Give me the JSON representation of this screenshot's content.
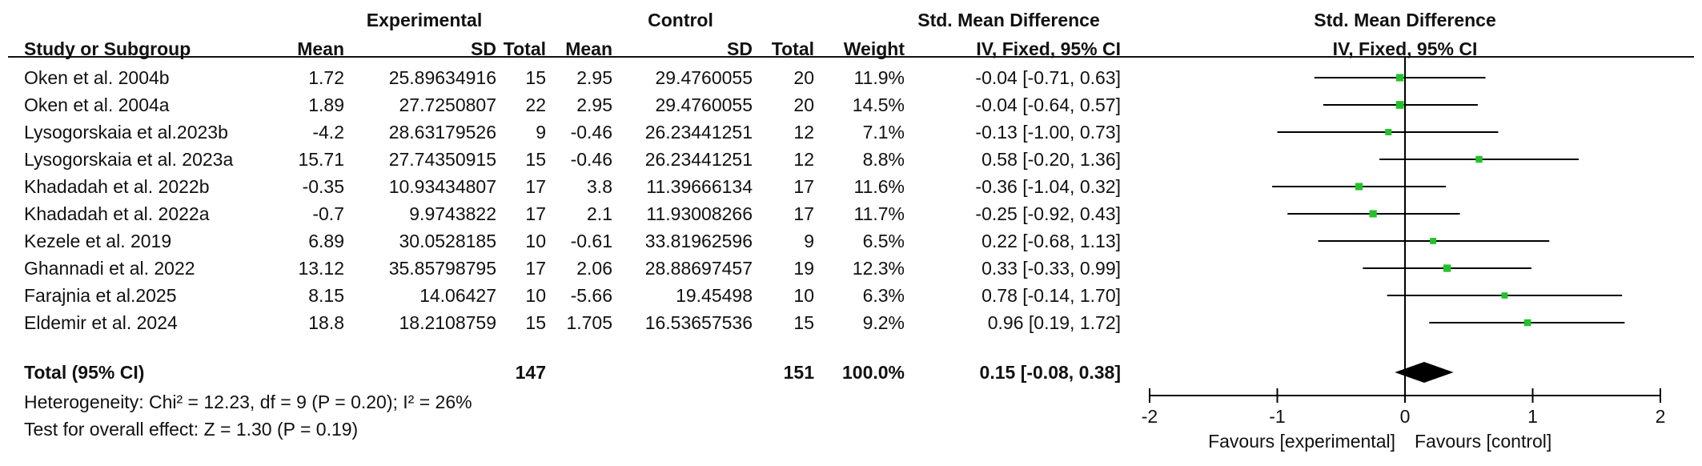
{
  "headers": {
    "experimental": "Experimental",
    "control": "Control",
    "smd_top": "Std. Mean Difference",
    "study": "Study or Subgroup",
    "mean": "Mean",
    "sd": "SD",
    "total": "Total",
    "weight": "Weight",
    "smd_sub": "IV, Fixed, 95% CI",
    "plot_top": "Std. Mean Difference",
    "plot_sub": "IV, Fixed, 95% CI"
  },
  "rows": [
    {
      "study": "Oken et al. 2004b",
      "e_mean": "1.72",
      "e_sd": "25.89634916",
      "e_total": "15",
      "c_mean": "2.95",
      "c_sd": "29.4760055",
      "c_total": "20",
      "weight": "11.9%",
      "ci": "-0.04 [-0.71, 0.63]"
    },
    {
      "study": "Oken et al. 2004a",
      "e_mean": "1.89",
      "e_sd": "27.7250807",
      "e_total": "22",
      "c_mean": "2.95",
      "c_sd": "29.4760055",
      "c_total": "20",
      "weight": "14.5%",
      "ci": "-0.04 [-0.64, 0.57]"
    },
    {
      "study": "Lysogorskaia et al.2023b",
      "e_mean": "-4.2",
      "e_sd": "28.63179526",
      "e_total": "9",
      "c_mean": "-0.46",
      "c_sd": "26.23441251",
      "c_total": "12",
      "weight": "7.1%",
      "ci": "-0.13 [-1.00, 0.73]"
    },
    {
      "study": "Lysogorskaia et al. 2023a",
      "e_mean": "15.71",
      "e_sd": "27.74350915",
      "e_total": "15",
      "c_mean": "-0.46",
      "c_sd": "26.23441251",
      "c_total": "12",
      "weight": "8.8%",
      "ci": "0.58 [-0.20, 1.36]"
    },
    {
      "study": "Khadadah et al. 2022b",
      "e_mean": "-0.35",
      "e_sd": "10.93434807",
      "e_total": "17",
      "c_mean": "3.8",
      "c_sd": "11.39666134",
      "c_total": "17",
      "weight": "11.6%",
      "ci": "-0.36 [-1.04, 0.32]"
    },
    {
      "study": "Khadadah et al. 2022a",
      "e_mean": "-0.7",
      "e_sd": "9.9743822",
      "e_total": "17",
      "c_mean": "2.1",
      "c_sd": "11.93008266",
      "c_total": "17",
      "weight": "11.7%",
      "ci": "-0.25 [-0.92, 0.43]"
    },
    {
      "study": "Kezele et al. 2019",
      "e_mean": "6.89",
      "e_sd": "30.0528185",
      "e_total": "10",
      "c_mean": "-0.61",
      "c_sd": "33.81962596",
      "c_total": "9",
      "weight": "6.5%",
      "ci": "0.22 [-0.68, 1.13]"
    },
    {
      "study": "Ghannadi et al. 2022",
      "e_mean": "13.12",
      "e_sd": "35.85798795",
      "e_total": "17",
      "c_mean": "2.06",
      "c_sd": "28.88697457",
      "c_total": "19",
      "weight": "12.3%",
      "ci": "0.33 [-0.33, 0.99]"
    },
    {
      "study": "Farajnia et al.2025",
      "e_mean": "8.15",
      "e_sd": "14.06427",
      "e_total": "10",
      "c_mean": "-5.66",
      "c_sd": "19.45498",
      "c_total": "10",
      "weight": "6.3%",
      "ci": "0.78 [-0.14, 1.70]"
    },
    {
      "study": "Eldemir et al. 2024",
      "e_mean": "18.8",
      "e_sd": "18.2108759",
      "e_total": "15",
      "c_mean": "1.705",
      "c_sd": "16.53657536",
      "c_total": "15",
      "weight": "9.2%",
      "ci": "0.96 [0.19, 1.72]"
    }
  ],
  "total": {
    "label": "Total (95% CI)",
    "e_total": "147",
    "c_total": "151",
    "weight": "100.0%",
    "ci": "0.15 [-0.08, 0.38]"
  },
  "heterogeneity": "Heterogeneity: Chi² = 12.23, df = 9 (P = 0.20); I² = 26%",
  "overall_effect": "Test for overall effect: Z = 1.30 (P = 0.19)",
  "favours_left": "Favours [experimental]",
  "favours_right": "Favours [control]",
  "colors": {
    "marker": "#22c22b",
    "diamond": "#000000",
    "line": "#000000"
  },
  "chart_data": {
    "type": "forest",
    "xlim": [
      -2,
      2
    ],
    "ticks": [
      -2,
      -1,
      0,
      1,
      2
    ],
    "tick_labels": [
      "-2",
      "-1",
      "0",
      "1",
      "2"
    ],
    "studies": [
      {
        "study": "Oken et al. 2004b",
        "smd": -0.04,
        "lower": -0.71,
        "upper": 0.63,
        "weight": 11.9
      },
      {
        "study": "Oken et al. 2004a",
        "smd": -0.04,
        "lower": -0.64,
        "upper": 0.57,
        "weight": 14.5
      },
      {
        "study": "Lysogorskaia et al.2023b",
        "smd": -0.13,
        "lower": -1.0,
        "upper": 0.73,
        "weight": 7.1
      },
      {
        "study": "Lysogorskaia et al. 2023a",
        "smd": 0.58,
        "lower": -0.2,
        "upper": 1.36,
        "weight": 8.8
      },
      {
        "study": "Khadadah et al. 2022b",
        "smd": -0.36,
        "lower": -1.04,
        "upper": 0.32,
        "weight": 11.6
      },
      {
        "study": "Khadadah et al. 2022a",
        "smd": -0.25,
        "lower": -0.92,
        "upper": 0.43,
        "weight": 11.7
      },
      {
        "study": "Kezele et al. 2019",
        "smd": 0.22,
        "lower": -0.68,
        "upper": 1.13,
        "weight": 6.5
      },
      {
        "study": "Ghannadi et al. 2022",
        "smd": 0.33,
        "lower": -0.33,
        "upper": 0.99,
        "weight": 12.3
      },
      {
        "study": "Farajnia et al.2025",
        "smd": 0.78,
        "lower": -0.14,
        "upper": 1.7,
        "weight": 6.3
      },
      {
        "study": "Eldemir et al. 2024",
        "smd": 0.96,
        "lower": 0.19,
        "upper": 1.72,
        "weight": 9.2
      }
    ],
    "pooled": {
      "smd": 0.15,
      "lower": -0.08,
      "upper": 0.38,
      "weight": 100.0
    }
  }
}
